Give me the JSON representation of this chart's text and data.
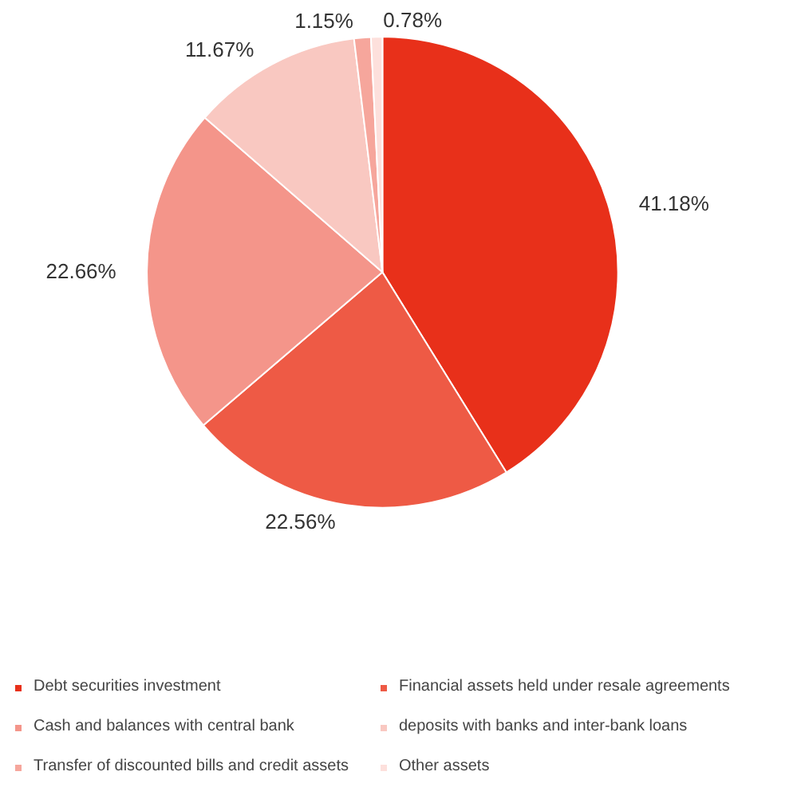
{
  "chart_data": {
    "type": "pie",
    "categories": [
      "Debt securities investment",
      "Financial assets held under resale agreements",
      "Cash and balances with central bank",
      "deposits with banks and inter-bank loans",
      "Transfer of discounted bills and credit assets",
      "Other assets"
    ],
    "values": [
      41.18,
      22.56,
      22.66,
      11.67,
      1.15,
      0.78
    ],
    "colors": [
      "#e8301a",
      "#ee5a45",
      "#f4958a",
      "#f9c8c1",
      "#f6a69c",
      "#fde0dc"
    ],
    "value_labels": [
      "41.18%",
      "22.56%",
      "22.66%",
      "11.67%",
      "1.15%",
      "0.78%"
    ],
    "legend": "bottom"
  }
}
